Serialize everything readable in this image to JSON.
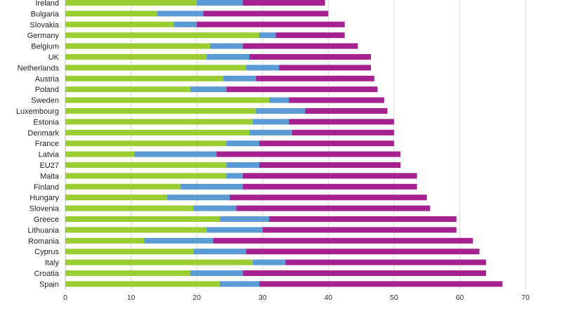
{
  "chart_data": {
    "type": "bar",
    "orientation": "horizontal",
    "stacked": true,
    "categories": [
      "Ireland",
      "Bulgaria",
      "Slovakia",
      "Germany",
      "Belgium",
      "UK",
      "Netherlands",
      "Austria",
      "Poland",
      "Sweden",
      "Luxembourg",
      "Estonia",
      "Denmark",
      "France",
      "Latvia",
      "EU27",
      "Malta",
      "Finland",
      "Hungary",
      "Slovenia",
      "Greece",
      "Lithuania",
      "Romania",
      "Cyprus",
      "Italy",
      "Croatia",
      "Spain"
    ],
    "series": [
      {
        "color": "#9acd32",
        "values": [
          20.0,
          14.0,
          16.5,
          29.5,
          22.0,
          21.5,
          27.5,
          24.0,
          19.0,
          31.0,
          29.0,
          28.5,
          28.0,
          24.5,
          10.5,
          24.5,
          24.5,
          17.5,
          15.5,
          19.5,
          23.5,
          21.5,
          12.0,
          19.5,
          28.5,
          19.0,
          23.5
        ]
      },
      {
        "color": "#5b9bd5",
        "values": [
          7.0,
          7.0,
          3.5,
          2.5,
          5.0,
          6.5,
          5.0,
          5.0,
          5.5,
          3.0,
          7.5,
          5.5,
          6.5,
          5.0,
          12.5,
          5.0,
          2.5,
          9.5,
          9.5,
          6.5,
          7.5,
          8.5,
          10.5,
          8.0,
          5.0,
          8.0,
          6.0
        ]
      },
      {
        "color": "#a5218f",
        "values": [
          12.5,
          19.0,
          22.5,
          10.5,
          17.5,
          18.5,
          14.0,
          18.0,
          23.0,
          14.5,
          12.5,
          16.0,
          15.5,
          20.5,
          28.0,
          21.5,
          26.5,
          26.5,
          30.0,
          29.5,
          28.5,
          29.5,
          39.5,
          35.5,
          30.5,
          37.0,
          37.0
        ]
      }
    ],
    "x_ticks": [
      "0",
      "10",
      "20",
      "30",
      "40",
      "50",
      "60",
      "70"
    ],
    "xlim": [
      0,
      70
    ],
    "grid": true
  }
}
